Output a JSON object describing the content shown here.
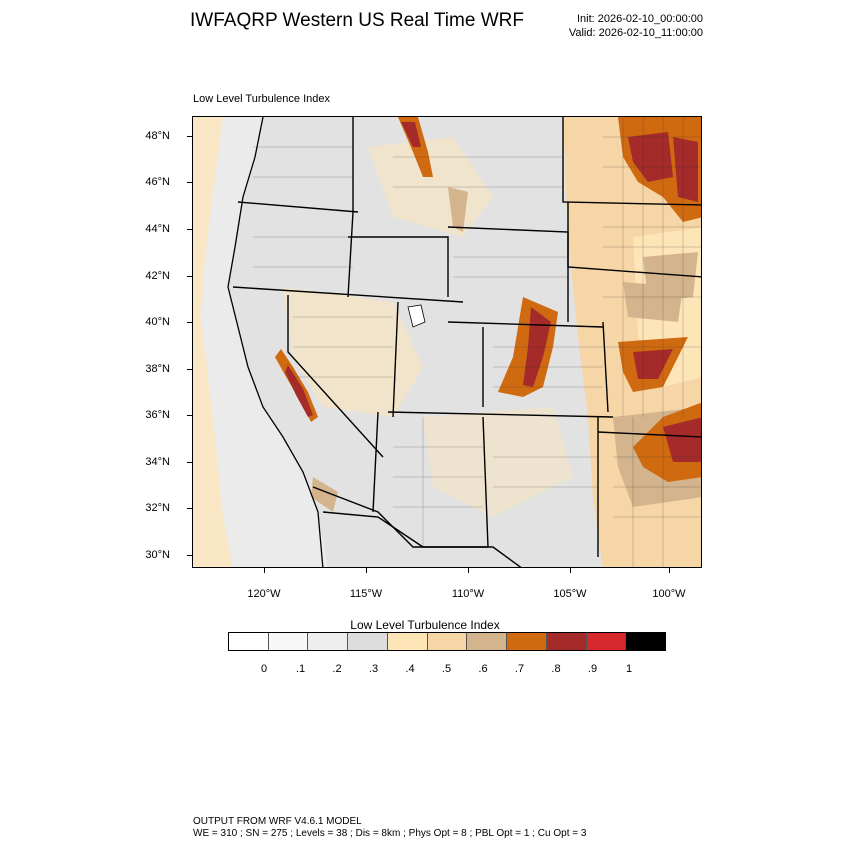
{
  "header": {
    "title": "IWFAQRP Western US Real Time WRF",
    "init": "Init: 2026-02-10_00:00:00",
    "valid": "Valid: 2026-02-10_11:00:00"
  },
  "plot": {
    "subtitle": "Low Level Turbulence Index",
    "lat_labels": [
      "48°N",
      "46°N",
      "44°N",
      "42°N",
      "40°N",
      "38°N",
      "36°N",
      "34°N",
      "32°N",
      "30°N"
    ],
    "lon_labels": [
      "120°W",
      "115°W",
      "110°W",
      "105°W",
      "100°W"
    ]
  },
  "colorbar": {
    "title": "Low Level Turbulence Index",
    "labels": [
      "0",
      ".1",
      ".2",
      ".3",
      ".4",
      ".5",
      ".6",
      ".7",
      ".8",
      ".9",
      "1"
    ],
    "colors": [
      "#ffffff",
      "#f7f7f7",
      "#eeeeee",
      "#dddddd",
      "#fde5b8",
      "#f6d5a7",
      "#d4b48c",
      "#d06a10",
      "#a52a2a",
      "#d7282d",
      "#000000"
    ]
  },
  "map_colors": {
    "ocean": "#ebebeb",
    "land_low": "#e2e2e2",
    "light_tan": "#fde5b8",
    "tan": "#f6d5a7",
    "brown": "#d4b48c",
    "orange": "#d06a10",
    "dark_red": "#a52a2a",
    "red": "#d7282d"
  },
  "footer": {
    "line1": "OUTPUT FROM WRF V4.6.1 MODEL",
    "line2": "WE = 310 ; SN = 275 ; Levels = 38 ; Dis = 8km ; Phys Opt = 8 ; PBL Opt = 1 ; Cu Opt = 3"
  }
}
